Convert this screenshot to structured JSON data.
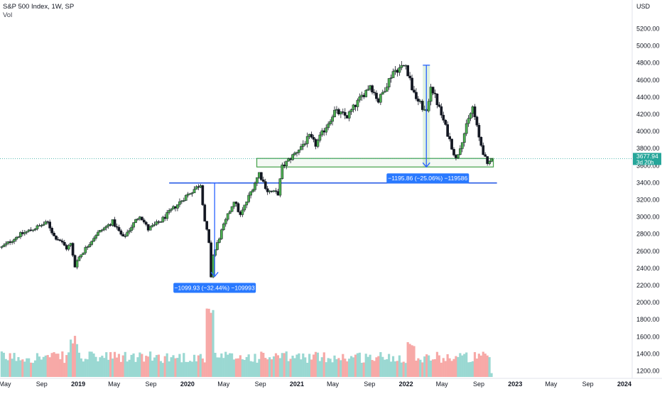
{
  "header": {
    "title": "S&P 500 Index, 1W, SP",
    "volume_label": "Vol"
  },
  "price_axis": {
    "currency": "USD",
    "current_price": "3677.94",
    "countdown": "3d 20h"
  },
  "annotations": {
    "covid_drop": "−1099.93 (−32.44%) −109993",
    "bear_2022": "−1195.86 (−25.06%) −119586"
  },
  "colors": {
    "up": "#26a69a",
    "down": "#ef5350",
    "up_vol": "#9ad8d2",
    "down_vol": "#f7a9a7",
    "support_line": "#1e53e5",
    "zone_box": "#43a047",
    "measure_blue": "#2962ff",
    "label_bg": "#2979ff",
    "price_tag": "#26a69a"
  },
  "chart_data": {
    "type": "candlestick",
    "symbol": "S&P 500 Index",
    "interval": "1W",
    "ylim": [
      1100,
      5400
    ],
    "y_ticks": [
      1200,
      1400,
      1600,
      1800,
      2000,
      2200,
      2400,
      2600,
      2800,
      3000,
      3200,
      3400,
      3600,
      3800,
      4000,
      4200,
      4400,
      4600,
      4800,
      5000,
      5200
    ],
    "y_tick_labels": [
      "1200.00",
      "1400.00",
      "1600.00",
      "1800.00",
      "2000.00",
      "2200.00",
      "2400.00",
      "2600.00",
      "2800.00",
      "3000.00",
      "3200.00",
      "3400.00",
      "3600.00",
      "3800.00",
      "4000.00",
      "4200.00",
      "4400.00",
      "4600.00",
      "4800.00",
      "5000.00",
      "5200.00"
    ],
    "x_labels": [
      {
        "label": "May",
        "date": "2018-05-01"
      },
      {
        "label": "Sep",
        "date": "2018-09-01"
      },
      {
        "label": "2019",
        "date": "2019-01-01"
      },
      {
        "label": "May",
        "date": "2019-05-01"
      },
      {
        "label": "Sep",
        "date": "2019-09-01"
      },
      {
        "label": "2020",
        "date": "2020-01-01"
      },
      {
        "label": "May",
        "date": "2020-05-01"
      },
      {
        "label": "Sep",
        "date": "2020-09-01"
      },
      {
        "label": "2021",
        "date": "2021-01-01"
      },
      {
        "label": "May",
        "date": "2021-05-01"
      },
      {
        "label": "Sep",
        "date": "2021-09-01"
      },
      {
        "label": "2022",
        "date": "2022-01-01"
      },
      {
        "label": "May",
        "date": "2022-05-01"
      },
      {
        "label": "Sep",
        "date": "2022-09-01"
      },
      {
        "label": "2023",
        "date": "2023-01-01"
      },
      {
        "label": "May",
        "date": "2023-05-01"
      },
      {
        "label": "Sep",
        "date": "2023-09-01"
      },
      {
        "label": "2024",
        "date": "2024-01-01"
      }
    ],
    "close_path": [
      {
        "date": "2018-04-20",
        "close": 2640
      },
      {
        "date": "2018-06-15",
        "close": 2780
      },
      {
        "date": "2018-08-31",
        "close": 2900
      },
      {
        "date": "2018-09-21",
        "close": 2930
      },
      {
        "date": "2018-10-12",
        "close": 2770
      },
      {
        "date": "2018-11-02",
        "close": 2720
      },
      {
        "date": "2018-11-23",
        "close": 2630
      },
      {
        "date": "2018-12-07",
        "close": 2680
      },
      {
        "date": "2018-12-21",
        "close": 2420
      },
      {
        "date": "2019-01-04",
        "close": 2530
      },
      {
        "date": "2019-03-01",
        "close": 2790
      },
      {
        "date": "2019-04-26",
        "close": 2940
      },
      {
        "date": "2019-05-31",
        "close": 2750
      },
      {
        "date": "2019-07-26",
        "close": 3020
      },
      {
        "date": "2019-08-23",
        "close": 2850
      },
      {
        "date": "2019-10-04",
        "close": 2950
      },
      {
        "date": "2019-12-27",
        "close": 3240
      },
      {
        "date": "2020-02-14",
        "close": 3380
      },
      {
        "date": "2020-02-28",
        "close": 2950
      },
      {
        "date": "2020-03-13",
        "close": 2710
      },
      {
        "date": "2020-03-20",
        "close": 2300
      },
      {
        "date": "2020-03-27",
        "close": 2540
      },
      {
        "date": "2020-04-24",
        "close": 2830
      },
      {
        "date": "2020-06-05",
        "close": 3190
      },
      {
        "date": "2020-06-26",
        "close": 3010
      },
      {
        "date": "2020-08-28",
        "close": 3510
      },
      {
        "date": "2020-09-25",
        "close": 3300
      },
      {
        "date": "2020-10-30",
        "close": 3270
      },
      {
        "date": "2020-11-13",
        "close": 3580
      },
      {
        "date": "2020-12-31",
        "close": 3760
      },
      {
        "date": "2021-02-12",
        "close": 3930
      },
      {
        "date": "2021-03-05",
        "close": 3840
      },
      {
        "date": "2021-05-07",
        "close": 4230
      },
      {
        "date": "2021-06-18",
        "close": 4170
      },
      {
        "date": "2021-09-03",
        "close": 4540
      },
      {
        "date": "2021-10-01",
        "close": 4350
      },
      {
        "date": "2021-11-19",
        "close": 4700
      },
      {
        "date": "2021-12-31",
        "close": 4770
      },
      {
        "date": "2022-01-28",
        "close": 4430
      },
      {
        "date": "2022-03-11",
        "close": 4200
      },
      {
        "date": "2022-03-25",
        "close": 4540
      },
      {
        "date": "2022-05-06",
        "close": 4120
      },
      {
        "date": "2022-06-17",
        "close": 3670
      },
      {
        "date": "2022-07-29",
        "close": 4130
      },
      {
        "date": "2022-08-12",
        "close": 4280
      },
      {
        "date": "2022-09-02",
        "close": 3920
      },
      {
        "date": "2022-09-30",
        "close": 3590
      },
      {
        "date": "2022-10-07",
        "close": 3640
      },
      {
        "date": "2022-10-14",
        "close": 3583
      },
      {
        "date": "2022-10-20",
        "close": 3678
      }
    ],
    "volume_scale": {
      "ylim": [
        0,
        1000
      ]
    },
    "support_line": {
      "price": 3393,
      "from": "2019-11-01",
      "to": "2022-11-01"
    },
    "support_zone": {
      "price_low": 3580,
      "price_high": 3680,
      "from": "2020-08-20",
      "to": "2022-10-20"
    },
    "measures": [
      {
        "date": "2020-04-01",
        "from": 3393,
        "to": 2300,
        "label_key": "covid_drop"
      },
      {
        "date": "2022-03-10",
        "from": 4770,
        "to": 3580,
        "label_key": "bear_2022"
      }
    ],
    "last_price": 3677.94
  }
}
